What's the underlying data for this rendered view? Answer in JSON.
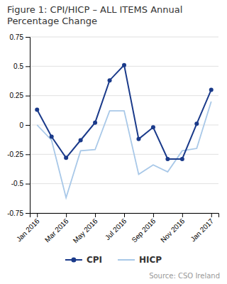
{
  "chart_data": {
    "type": "line",
    "title": "Figure 1: CPI/HICP – ALL ITEMS Annual\nPercentage Change",
    "categories": [
      "Jan 2016",
      null,
      "Mar 2016",
      null,
      "May 2016",
      null,
      "Jul 2016",
      null,
      "Sep 2016",
      null,
      "Nov 2016",
      null,
      "Jan 2017"
    ],
    "series": [
      {
        "name": "CPI",
        "color": "#1a3a8a",
        "marker": "circle",
        "line_style": "solid",
        "values": [
          0.13,
          -0.1,
          -0.28,
          -0.13,
          0.02,
          0.38,
          0.51,
          -0.12,
          -0.02,
          -0.29,
          -0.29,
          0.01,
          0.3
        ]
      },
      {
        "name": "HICP",
        "color": "#a8c8e8",
        "marker": "none",
        "line_style": "solid",
        "values": [
          0.0,
          -0.13,
          -0.62,
          -0.22,
          -0.21,
          0.12,
          0.12,
          -0.42,
          -0.34,
          -0.4,
          -0.22,
          -0.2,
          0.2
        ]
      }
    ],
    "ylim": [
      -0.75,
      0.75
    ],
    "yticks": [
      -0.75,
      -0.5,
      -0.25,
      0,
      0.25,
      0.5,
      0.75
    ],
    "grid": true,
    "legend": "bottom",
    "annotations": [
      "Source: CSO Ireland"
    ]
  }
}
